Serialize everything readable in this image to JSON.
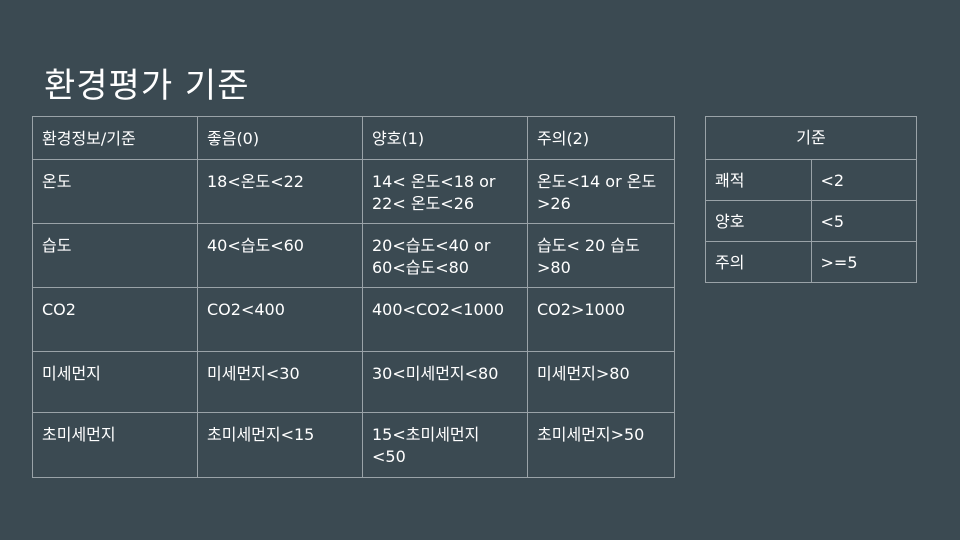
{
  "slide": {
    "title": "환경평가 기준"
  },
  "main_table": {
    "headers": [
      "환경정보/기준",
      "좋음(0)",
      "양호(1)",
      "주의(2)"
    ],
    "rows": [
      [
        "온도",
        "18<온도<22",
        "14< 온도<18 or 22< 온도<26",
        "온도<14 or 온도>26"
      ],
      [
        "습도",
        "40<습도<60",
        "20<습도<40 or 60<습도<80",
        "습도< 20 습도>80"
      ],
      [
        "CO2",
        "CO2<400",
        "400<CO2<1000",
        "CO2>1000"
      ],
      [
        "미세먼지",
        "미세먼지<30",
        "30<미세먼지<80",
        "미세먼지>80"
      ],
      [
        "초미세먼지",
        "초미세먼지<15",
        "15<초미세먼지 <50",
        "초미세먼지>50"
      ]
    ]
  },
  "side_table": {
    "header": "기준",
    "rows": [
      [
        "쾌적",
        "<2"
      ],
      [
        "양호",
        "<5"
      ],
      [
        "주의",
        ">=5"
      ]
    ]
  }
}
